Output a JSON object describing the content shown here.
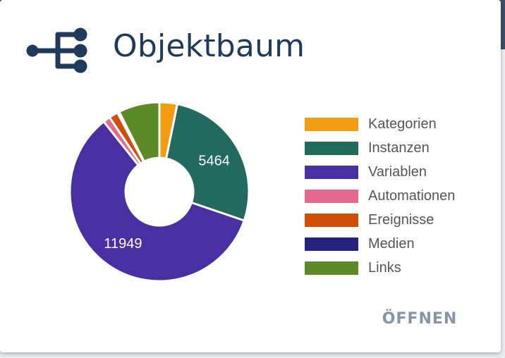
{
  "card": {
    "title": "Objektbaum",
    "icon": "tree-structure-icon",
    "open_button_label": "ÖFFNEN"
  },
  "colors": {
    "header_bar": "#3b4f66",
    "title": "#1f3a5c",
    "button": "#8595a8"
  },
  "chart_data": {
    "type": "pie",
    "variant": "donut",
    "title": "",
    "legend_position": "right",
    "slices": [
      {
        "label": "Kategorien",
        "value": 650,
        "color": "#f39c12",
        "shown_label": ""
      },
      {
        "label": "Instanzen",
        "value": 5464,
        "color": "#226a5e",
        "shown_label": "5464"
      },
      {
        "label": "Variablen",
        "value": 11949,
        "color": "#4a2fa3",
        "shown_label": "11949"
      },
      {
        "label": "Automationen",
        "value": 260,
        "color": "#e5688f",
        "shown_label": ""
      },
      {
        "label": "Ereignisse",
        "value": 330,
        "color": "#cf4e08",
        "shown_label": ""
      },
      {
        "label": "Medien",
        "value": 70,
        "color": "#25237e",
        "shown_label": ""
      },
      {
        "label": "Links",
        "value": 1500,
        "color": "#5b8a26",
        "shown_label": ""
      }
    ]
  }
}
